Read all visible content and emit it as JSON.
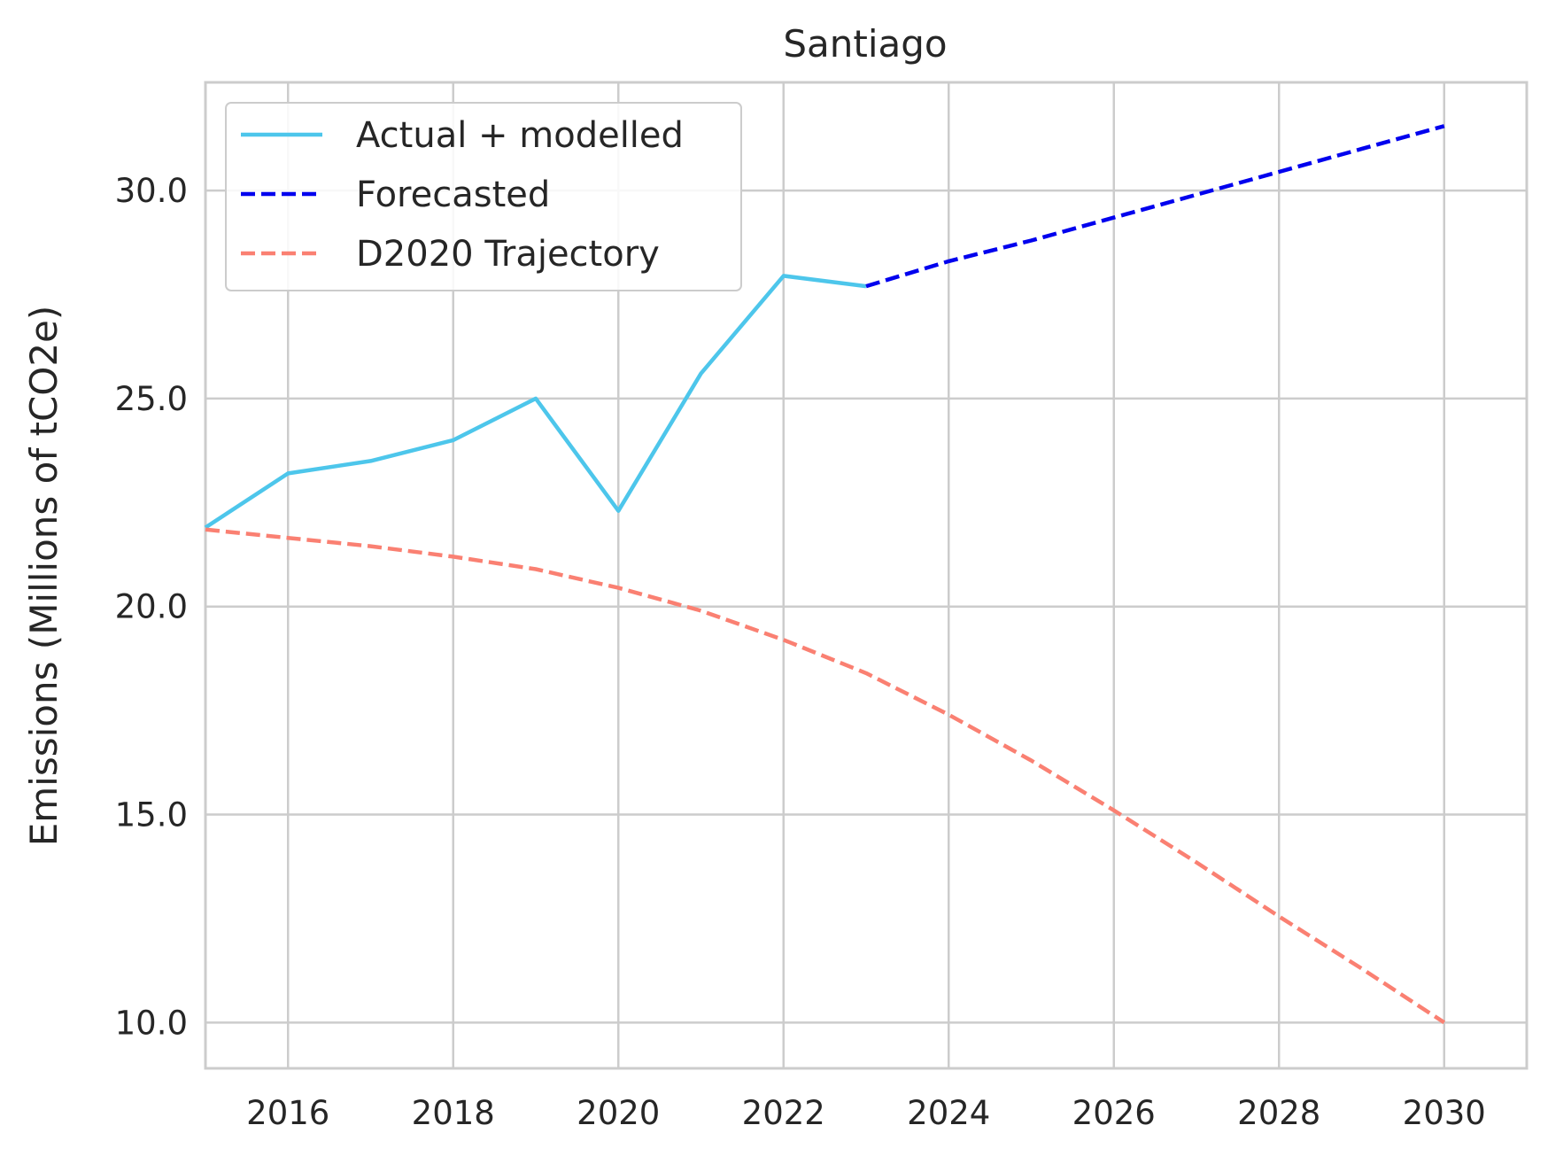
{
  "chart_data": {
    "type": "line",
    "title": "Santiago",
    "xlabel": "",
    "ylabel": "Emissions (Millions of tCO2e)",
    "xlim": [
      2015,
      2031
    ],
    "ylim": [
      8.9,
      32.6
    ],
    "x_ticks": [
      "2016",
      "2018",
      "2020",
      "2022",
      "2024",
      "2026",
      "2028",
      "2030"
    ],
    "x_tick_values": [
      2016,
      2018,
      2020,
      2022,
      2024,
      2026,
      2028,
      2030
    ],
    "y_ticks": [
      "10.0",
      "15.0",
      "20.0",
      "25.0",
      "30.0"
    ],
    "y_tick_values": [
      10,
      15,
      20,
      25,
      30
    ],
    "grid": true,
    "legend_position": "top-left",
    "series": [
      {
        "name": "Actual + modelled",
        "color": "#4dc6eb",
        "style": "solid",
        "x": [
          2015,
          2016,
          2017,
          2018,
          2019,
          2020,
          2021,
          2022,
          2023
        ],
        "values": [
          21.9,
          23.2,
          23.5,
          24.0,
          25.0,
          22.3,
          25.6,
          27.95,
          27.7
        ]
      },
      {
        "name": "Forecasted",
        "color": "#0000ee",
        "style": "dashed",
        "x": [
          2023,
          2024,
          2025,
          2026,
          2027,
          2028,
          2029,
          2030
        ],
        "values": [
          27.7,
          28.3,
          28.8,
          29.35,
          29.9,
          30.45,
          31.0,
          31.55
        ]
      },
      {
        "name": "D2020 Trajectory",
        "color": "#fa8072",
        "style": "dashed",
        "x": [
          2015,
          2016,
          2017,
          2018,
          2019,
          2020,
          2021,
          2022,
          2023,
          2024,
          2025,
          2026,
          2027,
          2028,
          2029,
          2030
        ],
        "values": [
          21.85,
          21.65,
          21.45,
          21.2,
          20.9,
          20.45,
          19.9,
          19.2,
          18.4,
          17.4,
          16.3,
          15.1,
          13.85,
          12.55,
          11.3,
          10.0
        ]
      }
    ]
  }
}
